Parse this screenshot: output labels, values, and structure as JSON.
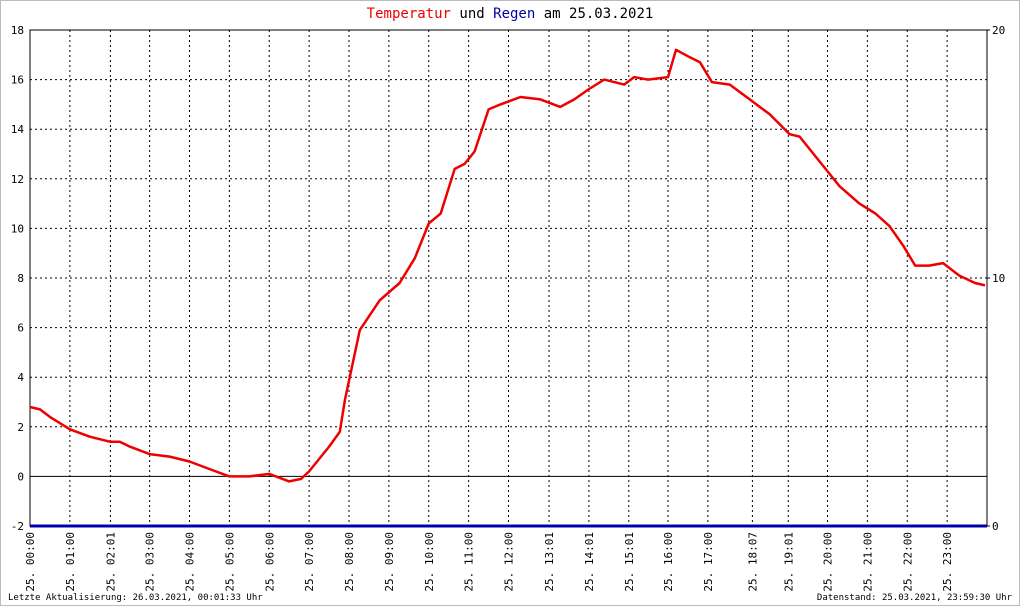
{
  "chart_data": {
    "type": "line",
    "title_connectors": [
      "und",
      "am 25.03.2021"
    ],
    "footer_left": "Letzte Aktualisierung: 26.03.2021, 00:01:33 Uhr",
    "footer_right": "Datenstand: 25.03.2021, 23:59:30 Uhr",
    "xlim": [
      0,
      24
    ],
    "xticks": [
      {
        "value": 0,
        "label": "25. 00:00"
      },
      {
        "value": 1,
        "label": "25. 01:00"
      },
      {
        "value": 2.0167,
        "label": "25. 02:01"
      },
      {
        "value": 3,
        "label": "25. 03:00"
      },
      {
        "value": 4,
        "label": "25. 04:00"
      },
      {
        "value": 5,
        "label": "25. 05:00"
      },
      {
        "value": 6,
        "label": "25. 06:00"
      },
      {
        "value": 7,
        "label": "25. 07:00"
      },
      {
        "value": 8,
        "label": "25. 08:00"
      },
      {
        "value": 9,
        "label": "25. 09:00"
      },
      {
        "value": 10,
        "label": "25. 10:00"
      },
      {
        "value": 11,
        "label": "25. 11:00"
      },
      {
        "value": 12,
        "label": "25. 12:00"
      },
      {
        "value": 13.0167,
        "label": "25. 13:01"
      },
      {
        "value": 14.0167,
        "label": "25. 14:01"
      },
      {
        "value": 15.0167,
        "label": "25. 15:01"
      },
      {
        "value": 16,
        "label": "25. 16:00"
      },
      {
        "value": 17,
        "label": "25. 17:00"
      },
      {
        "value": 18.1167,
        "label": "25. 18:07"
      },
      {
        "value": 19.0167,
        "label": "25. 19:01"
      },
      {
        "value": 20,
        "label": "25. 20:00"
      },
      {
        "value": 21,
        "label": "25. 21:00"
      },
      {
        "value": 22,
        "label": "25. 22:00"
      },
      {
        "value": 23,
        "label": "25. 23:00"
      }
    ],
    "ylim": [
      -2,
      18
    ],
    "yticks": [
      -2,
      0,
      2,
      4,
      6,
      8,
      10,
      12,
      14,
      16,
      18
    ],
    "y2lim": [
      0,
      20
    ],
    "y2ticks": [
      0,
      10,
      20
    ],
    "grid": true,
    "series": [
      {
        "name": "Temperatur",
        "color": "#ee0000",
        "x": [
          0,
          0.25,
          0.5,
          1.0,
          1.5,
          2.0,
          2.25,
          2.5,
          3.0,
          3.5,
          4.0,
          4.5,
          5.0,
          5.5,
          6.0,
          6.5,
          6.8,
          7.0,
          7.5,
          7.77,
          7.9,
          8.27,
          8.77,
          9.27,
          9.65,
          10.0,
          10.3,
          10.65,
          10.9,
          11.15,
          11.5,
          11.8,
          12.3,
          12.8,
          13.3,
          13.65,
          14.0,
          14.4,
          14.9,
          15.15,
          15.5,
          16.0,
          16.2,
          16.55,
          16.8,
          17.1,
          17.55,
          18.05,
          18.55,
          19.05,
          19.3,
          19.8,
          20.3,
          20.8,
          21.2,
          21.55,
          21.9,
          22.2,
          22.55,
          22.9,
          23.3,
          23.7,
          23.95
        ],
        "values": [
          2.8,
          2.7,
          2.4,
          1.9,
          1.6,
          1.4,
          1.4,
          1.2,
          0.9,
          0.8,
          0.6,
          0.3,
          0.0,
          0.0,
          0.1,
          -0.2,
          -0.1,
          0.2,
          1.2,
          1.8,
          3.1,
          5.9,
          7.1,
          7.8,
          8.8,
          10.2,
          10.6,
          12.4,
          12.6,
          13.1,
          14.8,
          15.0,
          15.3,
          15.2,
          14.9,
          15.2,
          15.6,
          16.0,
          15.8,
          16.1,
          16.0,
          16.1,
          17.2,
          16.9,
          16.7,
          15.9,
          15.8,
          15.2,
          14.6,
          13.8,
          13.7,
          12.7,
          11.7,
          11.0,
          10.6,
          10.1,
          9.3,
          8.5,
          8.5,
          8.6,
          8.1,
          7.8,
          7.7
        ]
      },
      {
        "name": "Regen",
        "color": "#0000aa",
        "axis": "y2",
        "x": [
          0,
          24
        ],
        "values": [
          0,
          0
        ]
      }
    ]
  }
}
